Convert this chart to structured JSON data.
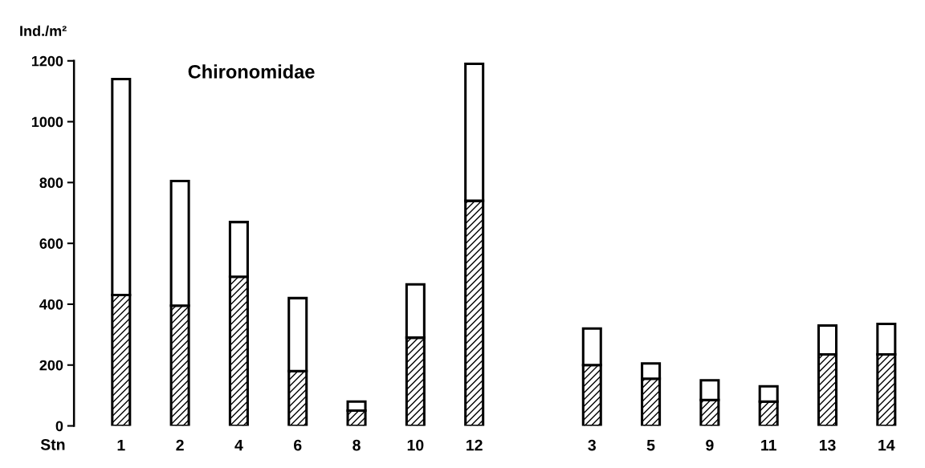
{
  "chart_data": {
    "type": "bar",
    "title": "Chironomidae",
    "xlabel": "Stn",
    "ylabel": "Ind./m²",
    "stacked": true,
    "categories": [
      "1",
      "2",
      "4",
      "6",
      "8",
      "10",
      "12",
      null,
      "3",
      "5",
      "9",
      "11",
      "13",
      "14"
    ],
    "series": [
      {
        "color": "#000000",
        "values": [
          430,
          395,
          490,
          180,
          50,
          290,
          740,
          null,
          200,
          155,
          85,
          80,
          235,
          235
        ]
      },
      {
        "color": "#ffffff",
        "values": [
          710,
          410,
          180,
          240,
          30,
          175,
          450,
          null,
          120,
          50,
          65,
          50,
          95,
          100
        ]
      }
    ],
    "ylim": [
      0,
      1200
    ],
    "yticks": [
      0,
      200,
      400,
      600,
      800,
      1000,
      1200
    ],
    "grid": false,
    "legend": false
  }
}
